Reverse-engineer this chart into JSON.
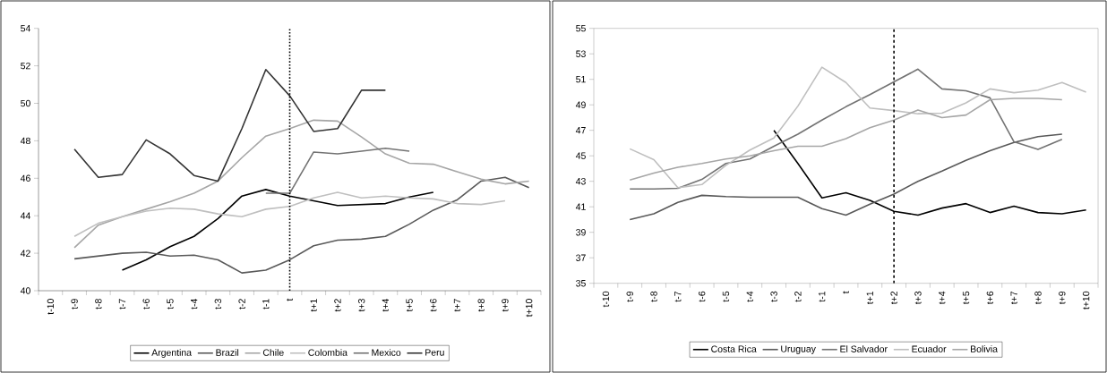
{
  "chart_data": [
    {
      "type": "line",
      "categories": [
        "t-10",
        "t-9",
        "t-8",
        "t-7",
        "t-6",
        "t-5",
        "t-4",
        "t-3",
        "t-2",
        "t-1",
        "t",
        "t+1",
        "t+2",
        "t+3",
        "t+4",
        "t+5",
        "t+6",
        "t+7",
        "t+8",
        "t+9",
        "t+10"
      ],
      "series": [
        {
          "name": "Argentina",
          "color": "#000000",
          "values": [
            null,
            null,
            null,
            41.1,
            41.65,
            42.35,
            42.9,
            43.85,
            45.05,
            45.4,
            45.05,
            44.8,
            44.55,
            44.6,
            44.65,
            45.0,
            45.25,
            null,
            null,
            null,
            null
          ]
        },
        {
          "name": "Brazil",
          "color": "#595959",
          "values": [
            null,
            41.7,
            41.85,
            42.0,
            42.05,
            41.85,
            41.9,
            41.65,
            40.95,
            41.1,
            41.65,
            42.4,
            42.7,
            42.75,
            42.9,
            43.55,
            44.3,
            44.85,
            45.85,
            46.05,
            45.5
          ]
        },
        {
          "name": "Chile",
          "color": "#a6a6a6",
          "values": [
            null,
            42.3,
            43.5,
            43.95,
            44.35,
            44.75,
            45.2,
            45.85,
            47.1,
            48.25,
            48.65,
            49.1,
            49.05,
            48.2,
            47.3,
            46.8,
            46.75,
            46.35,
            45.95,
            45.7,
            45.85
          ]
        },
        {
          "name": "Colombia",
          "color": "#bfbfbf",
          "values": [
            null,
            42.9,
            43.6,
            43.95,
            44.25,
            44.4,
            44.35,
            44.1,
            43.95,
            44.35,
            44.5,
            44.95,
            45.25,
            44.95,
            45.05,
            44.95,
            44.9,
            44.65,
            44.6,
            44.8,
            null
          ]
        },
        {
          "name": "Mexico",
          "color": "#737373",
          "values": [
            null,
            null,
            null,
            null,
            null,
            null,
            null,
            null,
            null,
            45.2,
            45.2,
            47.4,
            47.3,
            47.45,
            47.6,
            47.45,
            null,
            null,
            null,
            null,
            null
          ]
        },
        {
          "name": "Peru",
          "color": "#333333",
          "values": [
            null,
            47.55,
            46.05,
            46.2,
            48.05,
            47.3,
            46.15,
            45.85,
            48.65,
            51.8,
            50.4,
            48.5,
            48.65,
            50.7,
            50.7,
            null,
            null,
            null,
            null,
            null,
            null
          ]
        }
      ],
      "ylim": [
        40,
        54
      ],
      "yticks": [
        40,
        42,
        44,
        46,
        48,
        50,
        52,
        54
      ],
      "legend": "bottom",
      "ref_lines": [
        {
          "axis": "x",
          "value": "t",
          "line_style": "dotted",
          "color": "#000000"
        }
      ]
    },
    {
      "type": "line",
      "categories": [
        "t-10",
        "t-9",
        "t-8",
        "t-7",
        "t-6",
        "t-5",
        "t-4",
        "t-3",
        "t-2",
        "t-1",
        "t",
        "t+1",
        "t+2",
        "t+3",
        "t+4",
        "t+5",
        "t+6",
        "t+7",
        "t+8",
        "t+9",
        "t+10"
      ],
      "series": [
        {
          "name": "Costa Rica",
          "color": "#000000",
          "values": [
            null,
            null,
            null,
            null,
            null,
            null,
            null,
            47.0,
            44.4,
            41.7,
            42.1,
            41.5,
            40.65,
            40.35,
            40.9,
            41.25,
            40.55,
            41.05,
            40.55,
            40.45,
            40.75
          ]
        },
        {
          "name": "Uruguay",
          "color": "#595959",
          "values": [
            null,
            40.0,
            40.45,
            41.35,
            41.9,
            41.8,
            41.75,
            41.75,
            41.75,
            40.85,
            40.35,
            41.2,
            42.0,
            43.0,
            43.8,
            44.65,
            45.4,
            46.05,
            46.5,
            46.7,
            null
          ]
        },
        {
          "name": "El Salvador",
          "color": "#737373",
          "values": [
            null,
            42.4,
            42.4,
            42.45,
            43.15,
            44.4,
            44.75,
            45.75,
            46.7,
            47.8,
            48.85,
            49.8,
            50.8,
            51.8,
            50.25,
            50.1,
            49.55,
            46.1,
            45.5,
            46.3,
            null
          ]
        },
        {
          "name": "Ecuador",
          "color": "#bfbfbf",
          "values": [
            null,
            45.55,
            44.7,
            42.5,
            42.75,
            44.25,
            45.45,
            46.4,
            48.9,
            51.95,
            50.75,
            48.75,
            48.55,
            48.3,
            48.35,
            49.15,
            50.25,
            49.95,
            50.15,
            50.75,
            50.0
          ]
        },
        {
          "name": "Bolivia",
          "color": "#a6a6a6",
          "values": [
            null,
            43.1,
            43.65,
            44.1,
            44.4,
            44.75,
            45.0,
            45.4,
            45.75,
            45.75,
            46.35,
            47.2,
            47.8,
            48.6,
            48.0,
            48.2,
            49.4,
            49.5,
            49.5,
            49.4,
            null
          ]
        }
      ],
      "ylim": [
        35,
        55
      ],
      "yticks": [
        35,
        37,
        39,
        41,
        43,
        45,
        47,
        49,
        51,
        53,
        55
      ],
      "legend": "bottom",
      "ref_lines": [
        {
          "axis": "x",
          "value": "t+2",
          "line_style": "dashed",
          "color": "#000000"
        }
      ]
    }
  ]
}
